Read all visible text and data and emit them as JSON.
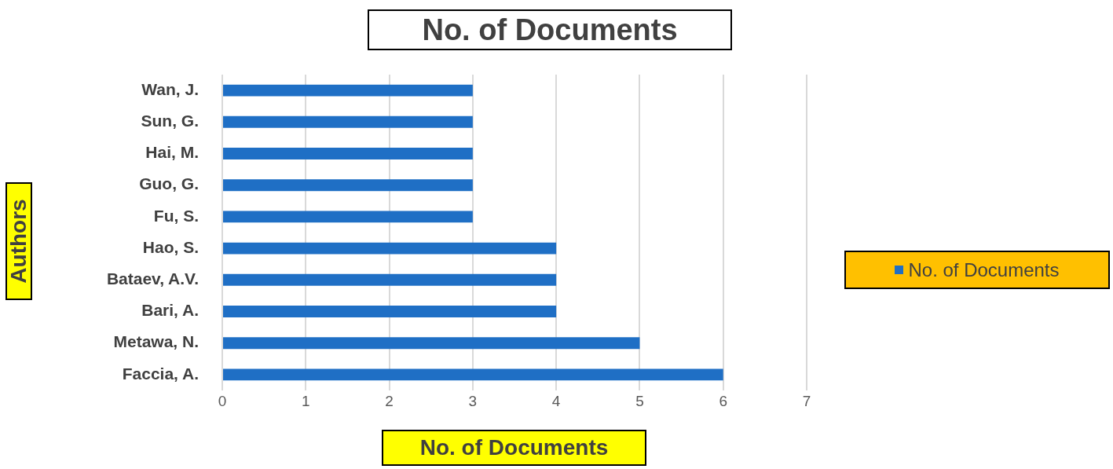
{
  "chart_data": {
    "type": "bar",
    "orientation": "horizontal",
    "title": "No. of Documents",
    "xlabel": "No. of Documents",
    "ylabel": "Authors",
    "categories": [
      "Wan, J.",
      "Sun, G.",
      "Hai, M.",
      "Guo, G.",
      "Fu, S.",
      "Hao, S.",
      "Bataev, A.V.",
      "Bari, A.",
      "Metawa, N.",
      "Faccia, A."
    ],
    "series": [
      {
        "name": "No. of Documents",
        "color": "#1f6fc5",
        "values": [
          3,
          3,
          3,
          3,
          3,
          4,
          4,
          4,
          5,
          6
        ]
      }
    ],
    "xlim": [
      0,
      7
    ],
    "xticks": [
      0,
      1,
      2,
      3,
      4,
      5,
      6,
      7
    ],
    "grid": "x",
    "legend": "right"
  }
}
